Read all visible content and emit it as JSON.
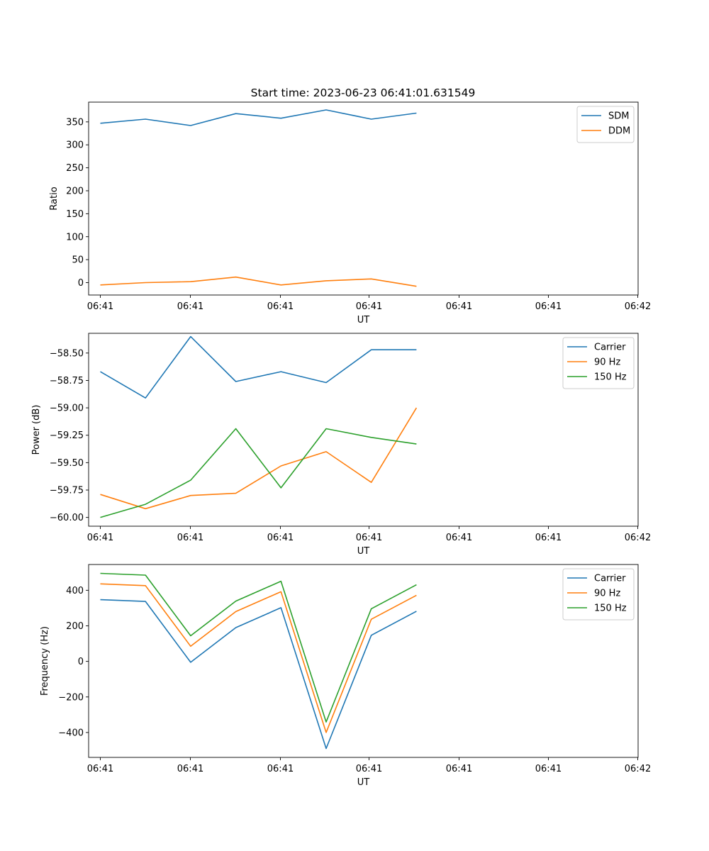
{
  "title": "Start time: 2023-06-23 06:41:01.631549",
  "colors": {
    "blue": "#1f77b4",
    "orange": "#ff7f0e",
    "green": "#2ca02c"
  },
  "chart_data": [
    {
      "type": "line",
      "ylabel": "Ratio",
      "xlabel": "UT",
      "x_tick_labels": [
        "06:41",
        "06:41",
        "06:41",
        "06:41",
        "06:41",
        "06:41",
        "06:42"
      ],
      "y_ticks": [
        0,
        50,
        100,
        150,
        200,
        250,
        300,
        350
      ],
      "ylim": [
        -27,
        393
      ],
      "legend_position": "top-right",
      "grid": false,
      "x": [
        1,
        2,
        3,
        4,
        5,
        6,
        7,
        8
      ],
      "series": [
        {
          "name": "SDM",
          "color": "#1f77b4",
          "values": [
            347,
            356,
            342,
            368,
            358,
            376,
            356,
            369
          ]
        },
        {
          "name": "DDM",
          "color": "#ff7f0e",
          "values": [
            -5,
            0,
            2,
            12,
            -5,
            4,
            8,
            -8
          ]
        }
      ]
    },
    {
      "type": "line",
      "ylabel": "Power (dB)",
      "xlabel": "UT",
      "x_tick_labels": [
        "06:41",
        "06:41",
        "06:41",
        "06:41",
        "06:41",
        "06:41",
        "06:42"
      ],
      "y_ticks": [
        -60.0,
        -59.75,
        -59.5,
        -59.25,
        -59.0,
        -58.75,
        -58.5
      ],
      "y_tick_labels": [
        "−60.00",
        "−59.75",
        "−59.50",
        "−59.25",
        "−59.00",
        "−58.75",
        "−58.50"
      ],
      "ylim": [
        -60.08,
        -58.32
      ],
      "legend_position": "top-right",
      "grid": false,
      "x": [
        1,
        2,
        3,
        4,
        5,
        6,
        7,
        8
      ],
      "series": [
        {
          "name": "Carrier",
          "color": "#1f77b4",
          "values": [
            -58.67,
            -58.91,
            -58.35,
            -58.76,
            -58.67,
            -58.77,
            -58.47,
            -58.47
          ]
        },
        {
          "name": "90 Hz",
          "color": "#ff7f0e",
          "values": [
            -59.79,
            -59.92,
            -59.8,
            -59.78,
            -59.53,
            -59.4,
            -59.68,
            -59.0
          ]
        },
        {
          "name": "150 Hz",
          "color": "#2ca02c",
          "values": [
            -60.0,
            -59.88,
            -59.66,
            -59.19,
            -59.73,
            -59.19,
            -59.27,
            -59.33
          ]
        }
      ]
    },
    {
      "type": "line",
      "ylabel": "Frequency (Hz)",
      "xlabel": "UT",
      "x_tick_labels": [
        "06:41",
        "06:41",
        "06:41",
        "06:41",
        "06:41",
        "06:41",
        "06:42"
      ],
      "y_ticks": [
        -400,
        -200,
        0,
        200,
        400
      ],
      "y_tick_labels": [
        "−400",
        "−200",
        "0",
        "200",
        "400"
      ],
      "ylim": [
        -540,
        545
      ],
      "legend_position": "top-right",
      "grid": false,
      "x": [
        1,
        2,
        3,
        4,
        5,
        6,
        7,
        8
      ],
      "series": [
        {
          "name": "Carrier",
          "color": "#1f77b4",
          "values": [
            347,
            337,
            -5,
            190,
            302,
            -490,
            147,
            282
          ]
        },
        {
          "name": "90 Hz",
          "color": "#ff7f0e",
          "values": [
            436,
            426,
            85,
            280,
            392,
            -400,
            237,
            372
          ]
        },
        {
          "name": "150 Hz",
          "color": "#2ca02c",
          "values": [
            495,
            485,
            144,
            339,
            451,
            -341,
            296,
            431
          ]
        }
      ]
    }
  ]
}
